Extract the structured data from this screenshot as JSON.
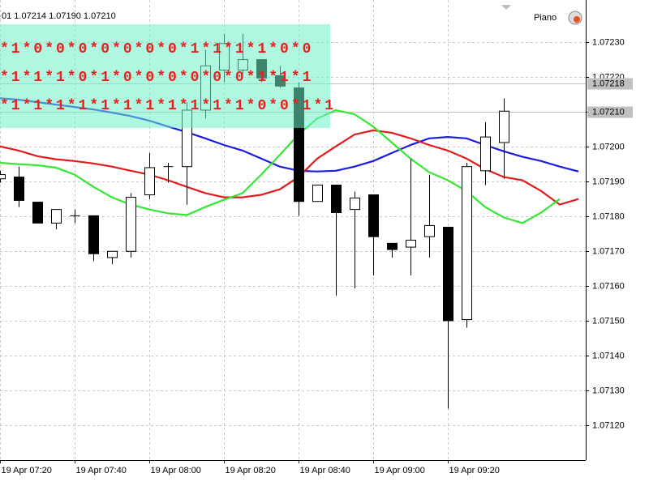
{
  "header": "01 1.07214 1.07190 1.07210",
  "indicator": "Piano",
  "chart_data": {
    "type": "candlestick",
    "categories": [
      "19 Apr 07:20",
      null,
      null,
      null,
      "19 Apr 07:40",
      null,
      null,
      null,
      "19 Apr 08:00",
      null,
      null,
      null,
      "19 Apr 08:20",
      null,
      null,
      null,
      "19 Apr 08:40",
      null,
      null,
      null,
      "19 Apr 09:00",
      null,
      null,
      null,
      "19 Apr 09:20",
      null,
      null,
      null,
      null,
      null,
      null,
      null
    ],
    "open": [
      1.071907,
      1.071912,
      1.07184,
      1.07178,
      1.071801,
      1.071801,
      1.071681,
      1.071699,
      1.071861,
      1.071939,
      1.071942,
      1.072104,
      1.072219,
      1.072219,
      1.072249,
      1.072203,
      1.072168,
      1.071842,
      1.071889,
      1.071819,
      1.071861,
      1.071722,
      1.071711,
      1.071741,
      1.071768,
      1.071503,
      1.07193,
      1.072011,
      null,
      null,
      null,
      null
    ],
    "high": [
      1.07193,
      1.071942,
      1.07184,
      1.071819,
      1.071819,
      1.071801,
      1.071699,
      1.071866,
      1.071981,
      1.071953,
      1.072127,
      1.072277,
      1.072323,
      1.072323,
      1.072249,
      1.072231,
      1.072184,
      1.071889,
      1.071889,
      1.07187,
      1.071861,
      1.071722,
      1.071963,
      1.071919,
      1.071768,
      1.071953,
      1.072069,
      1.072138,
      null,
      null,
      null,
      null
    ],
    "low": [
      1.071896,
      1.071826,
      1.07178,
      1.071762,
      1.07178,
      1.071671,
      1.071662,
      1.071681,
      1.071849,
      1.071896,
      1.071833,
      1.07208,
      1.072184,
      1.072208,
      1.072184,
      1.072168,
      1.071801,
      1.071842,
      1.071572,
      1.071593,
      1.07163,
      1.071681,
      1.07163,
      1.071681,
      1.071248,
      1.07148,
      1.071889,
      1.071907,
      null,
      null,
      null,
      null
    ],
    "close": [
      1.071919,
      1.071845,
      1.07178,
      1.071819,
      1.071801,
      1.071692,
      1.071699,
      1.071854,
      1.071939,
      1.071942,
      1.072104,
      1.072231,
      1.072295,
      1.072249,
      1.072196,
      1.072173,
      1.071842,
      1.071889,
      1.07181,
      1.071852,
      1.071741,
      1.071704,
      1.071731,
      1.071773,
      1.0715,
      1.071942,
      1.072027,
      1.072101,
      null,
      null,
      null,
      null
    ],
    "up_color": "#ffffff",
    "down_color": "#000000",
    "series": [
      {
        "color": "#1c1ce0",
        "values": [
          1.072138,
          1.072134,
          1.072127,
          1.07212,
          1.072113,
          1.072106,
          1.072097,
          1.072087,
          1.072074,
          1.072057,
          1.072041,
          1.072023,
          1.072004,
          1.071988,
          1.071965,
          1.071942,
          1.07193,
          1.071928,
          1.07193,
          1.071942,
          1.071958,
          1.071981,
          1.072004,
          1.072023,
          1.072027,
          1.072023,
          1.072004,
          1.071986,
          1.07197,
          1.071958,
          1.071942,
          1.071928
        ]
      },
      {
        "color": "#e01c1c",
        "values": [
          1.072,
          1.071988,
          1.071972,
          1.071963,
          1.071958,
          1.071951,
          1.071942,
          1.07193,
          1.071919,
          1.071903,
          1.071884,
          1.071866,
          1.071854,
          1.071854,
          1.071861,
          1.071877,
          1.071912,
          1.071965,
          1.072,
          1.072034,
          1.072046,
          1.072039,
          1.072023,
          1.072004,
          1.071988,
          1.071965,
          1.071935,
          1.071912,
          1.071903,
          1.071872,
          1.071833,
          1.071849
        ]
      },
      {
        "color": "#33e833",
        "values": [
          1.071953,
          1.071949,
          1.071946,
          1.071939,
          1.071919,
          1.071884,
          1.071854,
          1.071833,
          1.071819,
          1.071808,
          1.071803,
          1.071826,
          1.071847,
          1.071866,
          1.071919,
          1.071976,
          1.072034,
          1.07208,
          1.072104,
          1.072092,
          1.072057,
          1.072011,
          1.071965,
          1.071926,
          1.071903,
          1.071872,
          1.071826,
          1.071796,
          1.07178,
          1.07181,
          1.071849,
          null
        ]
      }
    ],
    "ylim": [
      1.0711,
      1.07242
    ],
    "yticks": [
      {
        "value": 1.0712,
        "label": "1.07120"
      },
      {
        "value": 1.0713,
        "label": "1.07130"
      },
      {
        "value": 1.0714,
        "label": "1.07140"
      },
      {
        "value": 1.0715,
        "label": "1.07150"
      },
      {
        "value": 1.0716,
        "label": "1.07160"
      },
      {
        "value": 1.0717,
        "label": "1.07170"
      },
      {
        "value": 1.0718,
        "label": "1.07180"
      },
      {
        "value": 1.0719,
        "label": "1.07190"
      },
      {
        "value": 1.072,
        "label": "1.07200"
      },
      {
        "value": 1.0721,
        "label": "1.07210"
      },
      {
        "value": 1.0722,
        "label": "1.07220"
      },
      {
        "value": 1.0723,
        "label": "1.07230"
      }
    ],
    "price_levels": [
      1.07218,
      {
        "value": 1.0721,
        "label": "1.07210"
      }
    ],
    "annotations": [
      "*1*0*0*0*0*0*0*0*1*1*1*1*0*0",
      "*1*1*1*0*1*0*0*0*0*0*0*1*1*1",
      "*1*1*1*1*1*1*1*1*1*1*1*0*0*1*1"
    ],
    "grid": true
  }
}
